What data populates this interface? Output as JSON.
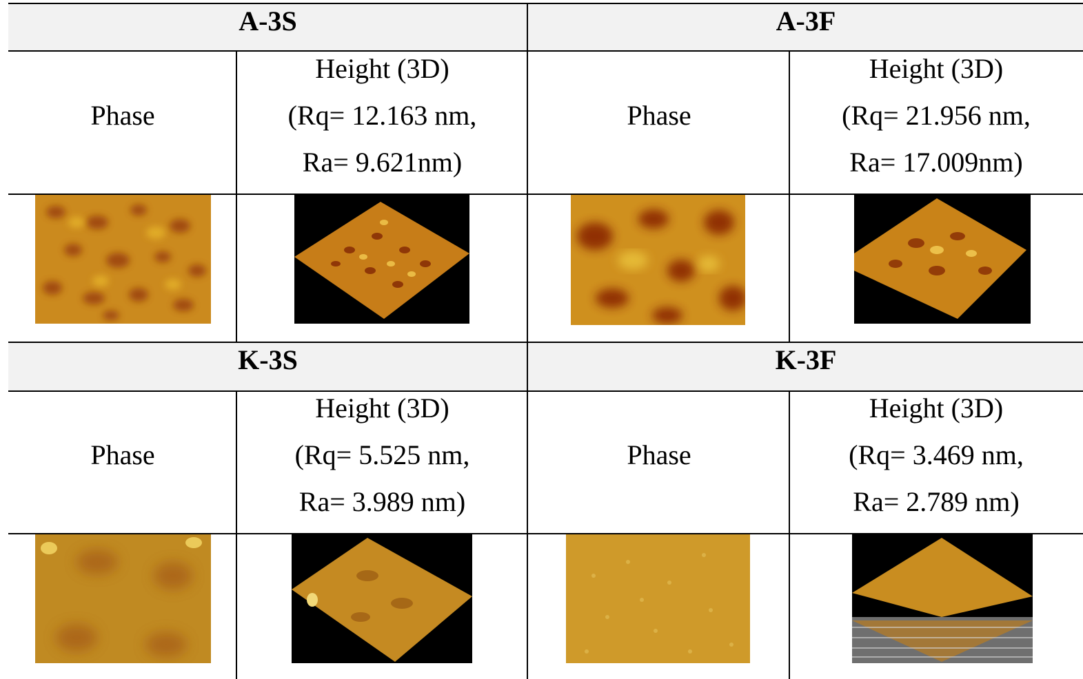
{
  "blocks": [
    {
      "samples": [
        {
          "title": "A-3S",
          "phase_label": "Phase",
          "height_label": "Height (3D)",
          "rq": "(Rq= 12.163 nm,",
          "ra": "Ra= 9.621nm)"
        },
        {
          "title": "A-3F",
          "phase_label": "Phase",
          "height_label": "Height (3D)",
          "rq": "(Rq= 21.956 nm,",
          "ra": "Ra= 17.009nm)"
        }
      ]
    },
    {
      "samples": [
        {
          "title": "K-3S",
          "phase_label": "Phase",
          "height_label": "Height (3D)",
          "rq": "(Rq= 5.525 nm,",
          "ra": "Ra= 3.989 nm)"
        },
        {
          "title": "K-3F",
          "phase_label": "Phase",
          "height_label": "Height (3D)",
          "rq": "(Rq= 3.469 nm,",
          "ra": "Ra= 2.789 nm)"
        }
      ]
    }
  ],
  "colors": {
    "header_bg": "#f2f2f2",
    "afm_base": "#c8831a",
    "afm_dark": "#8a2a05",
    "afm_light": "#e6b52a",
    "plot_bg": "#000000"
  }
}
